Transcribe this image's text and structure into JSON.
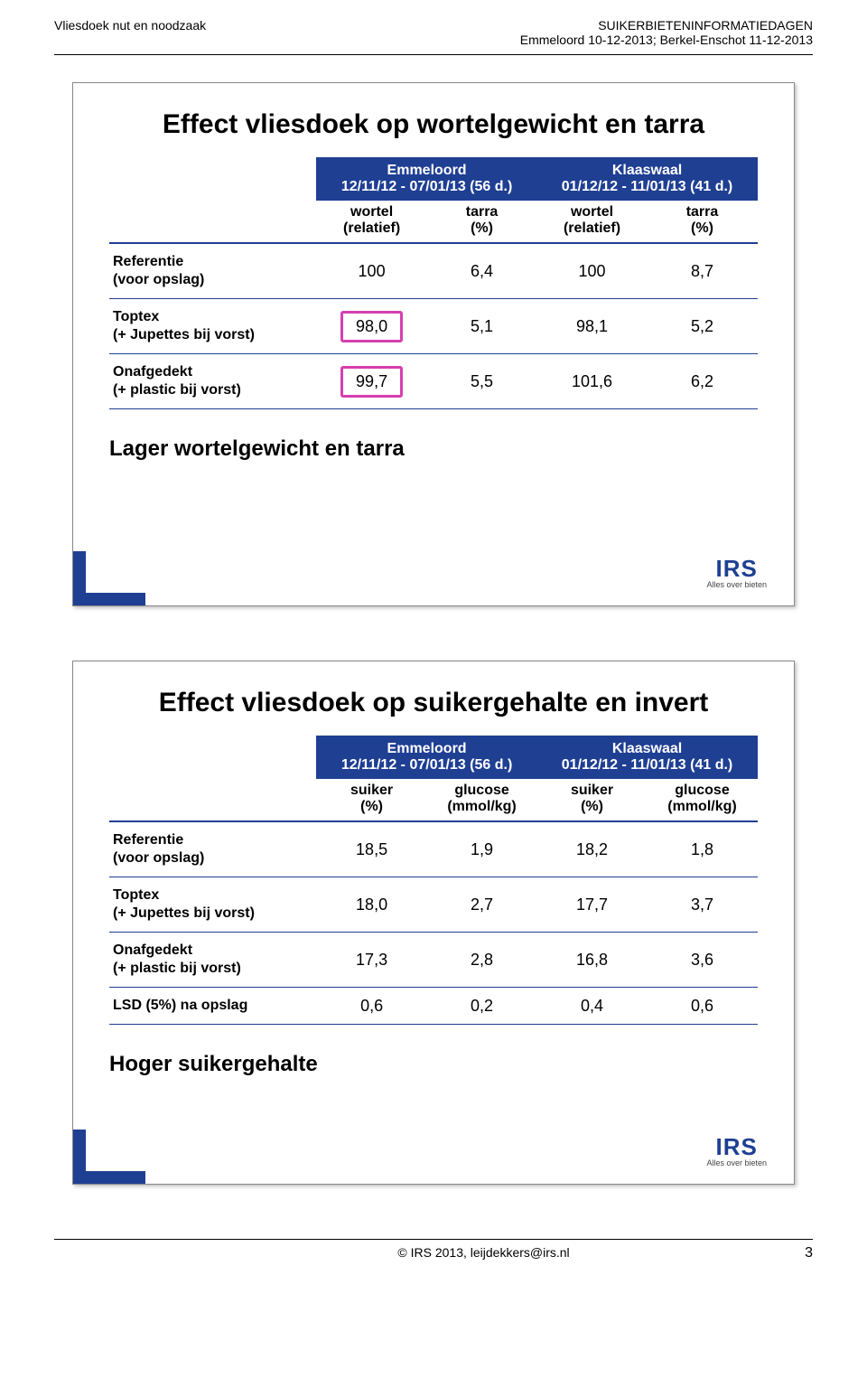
{
  "header": {
    "left": "Vliesdoek nut en noodzaak",
    "right_line1": "SUIKERBIETENINFORMATIEDAGEN",
    "right_line2": "Emmeloord 10-12-2013; Berkel-Enschot 11-12-2013"
  },
  "slide1": {
    "title": "Effect vliesdoek op wortelgewicht en tarra",
    "group_headers": [
      "Emmeloord\n12/11/12 - 07/01/13 (56 d.)",
      "Klaaswaal\n01/12/12 - 11/01/13 (41 d.)"
    ],
    "sub_headers": [
      "wortel (relatief)",
      "tarra (%)",
      "wortel (relatief)",
      "tarra (%)"
    ],
    "rows": [
      {
        "label": "Referentie\n(voor opslag)",
        "vals": [
          "100",
          "6,4",
          "100",
          "8,7"
        ],
        "highlight": false
      },
      {
        "label": "Toptex\n(+ Jupettes bij vorst)",
        "vals": [
          "98,0",
          "5,1",
          "98,1",
          "5,2"
        ],
        "highlight": true
      },
      {
        "label": "Onafgedekt\n(+ plastic bij vorst)",
        "vals": [
          "99,7",
          "5,5",
          "101,6",
          "6,2"
        ],
        "highlight": true
      }
    ],
    "caption": "Lager wortelgewicht en tarra"
  },
  "slide2": {
    "title": "Effect vliesdoek op suikergehalte en invert",
    "group_headers": [
      "Emmeloord\n12/11/12 - 07/01/13 (56 d.)",
      "Klaaswaal\n01/12/12 - 11/01/13 (41 d.)"
    ],
    "sub_headers": [
      "suiker (%)",
      "glucose (mmol/kg)",
      "suiker (%)",
      "glucose (mmol/kg)"
    ],
    "rows": [
      {
        "label": "Referentie\n(voor opslag)",
        "vals": [
          "18,5",
          "1,9",
          "18,2",
          "1,8"
        ],
        "highlight": false
      },
      {
        "label": "Toptex\n(+ Jupettes bij vorst)",
        "vals": [
          "18,0",
          "2,7",
          "17,7",
          "3,7"
        ],
        "highlight": false
      },
      {
        "label": "Onafgedekt\n(+ plastic bij vorst)",
        "vals": [
          "17,3",
          "2,8",
          "16,8",
          "3,6"
        ],
        "highlight": false
      },
      {
        "label": "LSD (5%) na opslag",
        "vals": [
          "0,6",
          "0,2",
          "0,4",
          "0,6"
        ],
        "highlight": false,
        "single_line": true
      }
    ],
    "caption": "Hoger suikergehalte"
  },
  "footer": {
    "center": "© IRS 2013, leijdekkers@irs.nl",
    "page": "3"
  },
  "logo": {
    "top": "IRS",
    "sub": "Alles over bieten"
  },
  "colors": {
    "brand_blue": "#1f3f93",
    "highlight_magenta": "#d63fb0"
  }
}
